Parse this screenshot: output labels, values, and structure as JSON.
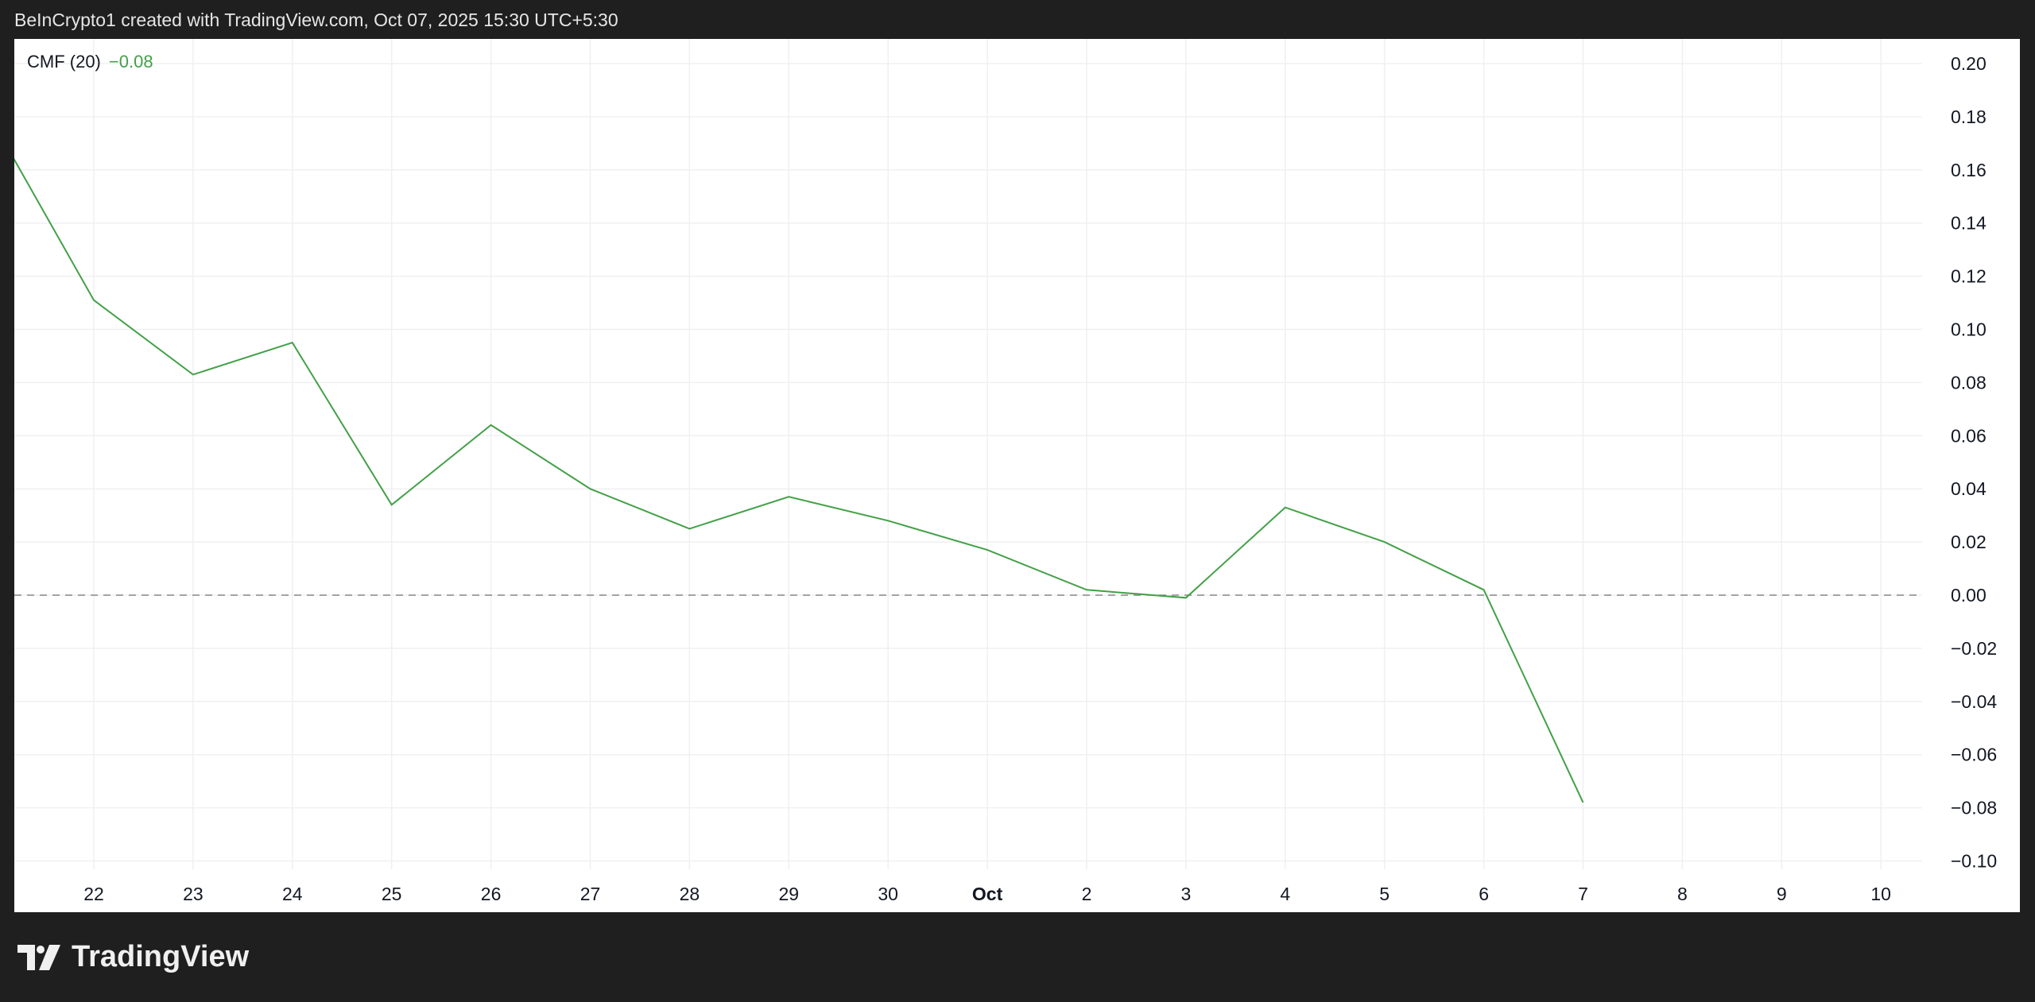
{
  "header": {
    "title": "BeInCrypto1 created with TradingView.com, Oct 07, 2025 15:30 UTC+5:30"
  },
  "legend": {
    "indicator": "CMF (20)",
    "value": "−0.08"
  },
  "brand": {
    "name": "TradingView",
    "icon": "tradingview-logo-icon"
  },
  "colors": {
    "line": "#43a047",
    "background": "#ffffff",
    "frame": "#1f1f1f",
    "zero_line": "#888888"
  },
  "chart_data": {
    "type": "line",
    "title": "",
    "xlabel": "",
    "ylabel": "",
    "x_tick_labels": [
      "22",
      "23",
      "24",
      "25",
      "26",
      "27",
      "28",
      "29",
      "30",
      "Oct",
      "2",
      "3",
      "4",
      "5",
      "6",
      "7",
      "8",
      "9",
      "10"
    ],
    "y_tick_labels": [
      "0.20",
      "0.18",
      "0.16",
      "0.14",
      "0.12",
      "0.10",
      "0.08",
      "0.06",
      "0.04",
      "0.02",
      "0.00",
      "−0.02",
      "−0.04",
      "−0.06",
      "−0.08",
      "−0.10"
    ],
    "ylim": [
      -0.1,
      0.2
    ],
    "xlim": [
      "2025-09-21",
      "2025-10-10"
    ],
    "grid": true,
    "zero_line": "dashed",
    "series": [
      {
        "name": "CMF (20)",
        "x": [
          "2025-09-21",
          "2025-09-22",
          "2025-09-23",
          "2025-09-24",
          "2025-09-25",
          "2025-09-26",
          "2025-09-27",
          "2025-09-28",
          "2025-09-29",
          "2025-09-30",
          "2025-10-01",
          "2025-10-02",
          "2025-10-03",
          "2025-10-04",
          "2025-10-05",
          "2025-10-06",
          "2025-10-07"
        ],
        "values": [
          0.177,
          0.111,
          0.083,
          0.095,
          0.034,
          0.064,
          0.04,
          0.025,
          0.037,
          0.028,
          0.017,
          0.002,
          -0.001,
          0.033,
          0.02,
          0.002,
          -0.078
        ]
      }
    ]
  }
}
